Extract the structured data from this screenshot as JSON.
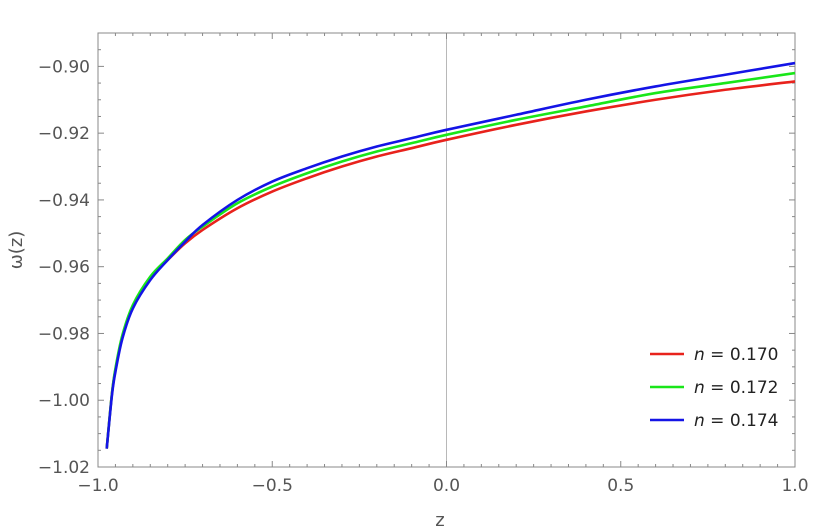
{
  "chart_data": {
    "type": "line",
    "xlabel": "z",
    "ylabel": "ω(z)",
    "xlim": [
      -1.0,
      1.0
    ],
    "ylim": [
      -1.02,
      -0.89
    ],
    "x_ticks": [
      -1.0,
      -0.5,
      0.0,
      0.5,
      1.0
    ],
    "x_tick_labels": [
      "−1.0",
      "−0.5",
      "0.0",
      "0.5",
      "1.0"
    ],
    "y_ticks": [
      -1.02,
      -1.0,
      -0.98,
      -0.96,
      -0.94,
      -0.92,
      -0.9
    ],
    "y_tick_labels": [
      "−1.02",
      "−1.00",
      "−0.98",
      "−0.96",
      "−0.94",
      "−0.92",
      "−0.90"
    ],
    "grid": false,
    "frame": true,
    "vertical_reference_line_x": 0.0,
    "legend_position": "bottom-right",
    "series": [
      {
        "name": "n = 0.170",
        "legend_var": "n",
        "legend_rest": " = 0.170",
        "color": "#e8221c",
        "points": [
          [
            -0.975,
            -1.0145
          ],
          [
            -0.96,
            -0.998
          ],
          [
            -0.95,
            -0.991
          ],
          [
            -0.93,
            -0.981
          ],
          [
            -0.9,
            -0.972
          ],
          [
            -0.85,
            -0.9635
          ],
          [
            -0.8,
            -0.958
          ],
          [
            -0.75,
            -0.953
          ],
          [
            -0.7,
            -0.949
          ],
          [
            -0.6,
            -0.9425
          ],
          [
            -0.5,
            -0.9375
          ],
          [
            -0.4,
            -0.9335
          ],
          [
            -0.3,
            -0.93
          ],
          [
            -0.2,
            -0.927
          ],
          [
            -0.1,
            -0.9245
          ],
          [
            0.0,
            -0.922
          ],
          [
            0.2,
            -0.9175
          ],
          [
            0.4,
            -0.9135
          ],
          [
            0.6,
            -0.91
          ],
          [
            0.8,
            -0.907
          ],
          [
            1.0,
            -0.9045
          ]
        ]
      },
      {
        "name": "n = 0.172",
        "legend_var": "n",
        "legend_rest": " = 0.172",
        "color": "#19e619",
        "points": [
          [
            -0.975,
            -1.0145
          ],
          [
            -0.96,
            -0.998
          ],
          [
            -0.95,
            -0.9905
          ],
          [
            -0.93,
            -0.9805
          ],
          [
            -0.9,
            -0.9715
          ],
          [
            -0.85,
            -0.963
          ],
          [
            -0.8,
            -0.9575
          ],
          [
            -0.75,
            -0.952
          ],
          [
            -0.7,
            -0.948
          ],
          [
            -0.6,
            -0.941
          ],
          [
            -0.5,
            -0.936
          ],
          [
            -0.4,
            -0.932
          ],
          [
            -0.3,
            -0.9285
          ],
          [
            -0.2,
            -0.9255
          ],
          [
            -0.1,
            -0.923
          ],
          [
            0.0,
            -0.9205
          ],
          [
            0.2,
            -0.916
          ],
          [
            0.4,
            -0.912
          ],
          [
            0.6,
            -0.908
          ],
          [
            0.8,
            -0.905
          ],
          [
            1.0,
            -0.902
          ]
        ]
      },
      {
        "name": "n = 0.174",
        "legend_var": "n",
        "legend_rest": " = 0.174",
        "color": "#1414e6",
        "points": [
          [
            -0.975,
            -1.0145
          ],
          [
            -0.96,
            -0.9985
          ],
          [
            -0.95,
            -0.9915
          ],
          [
            -0.93,
            -0.9815
          ],
          [
            -0.9,
            -0.9725
          ],
          [
            -0.85,
            -0.964
          ],
          [
            -0.8,
            -0.958
          ],
          [
            -0.75,
            -0.9525
          ],
          [
            -0.7,
            -0.9475
          ],
          [
            -0.6,
            -0.94
          ],
          [
            -0.5,
            -0.9345
          ],
          [
            -0.4,
            -0.9305
          ],
          [
            -0.3,
            -0.927
          ],
          [
            -0.2,
            -0.924
          ],
          [
            -0.1,
            -0.9215
          ],
          [
            0.0,
            -0.919
          ],
          [
            0.2,
            -0.9145
          ],
          [
            0.4,
            -0.91
          ],
          [
            0.6,
            -0.906
          ],
          [
            0.8,
            -0.9025
          ],
          [
            1.0,
            -0.899
          ]
        ]
      }
    ]
  }
}
